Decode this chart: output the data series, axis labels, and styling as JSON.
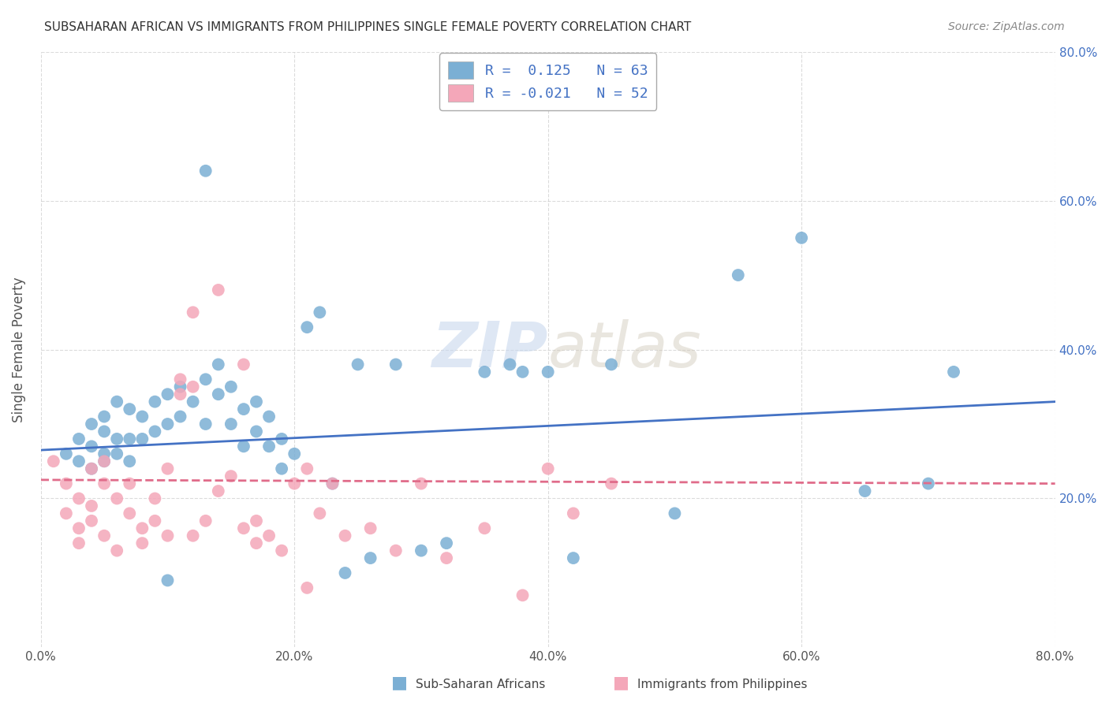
{
  "title": "SUBSAHARAN AFRICAN VS IMMIGRANTS FROM PHILIPPINES SINGLE FEMALE POVERTY CORRELATION CHART",
  "source": "Source: ZipAtlas.com",
  "ylabel": "Single Female Poverty",
  "xlim": [
    0.0,
    0.8
  ],
  "ylim": [
    0.0,
    0.8
  ],
  "xtick_labels": [
    "0.0%",
    "20.0%",
    "40.0%",
    "60.0%",
    "80.0%"
  ],
  "xtick_vals": [
    0.0,
    0.2,
    0.4,
    0.6,
    0.8
  ],
  "ytick_vals": [
    0.2,
    0.4,
    0.6,
    0.8
  ],
  "right_ytick_labels": [
    "20.0%",
    "40.0%",
    "60.0%",
    "80.0%"
  ],
  "right_ytick_vals": [
    0.2,
    0.4,
    0.6,
    0.8
  ],
  "color_blue": "#7bafd4",
  "color_pink": "#f4a7b9",
  "color_blue_line": "#4472c4",
  "color_pink_line": "#e06c8a",
  "watermark_zip": "ZIP",
  "watermark_atlas": "atlas",
  "legend_label1": "Sub-Saharan Africans",
  "legend_label2": "Immigrants from Philippines",
  "blue_scatter_x": [
    0.02,
    0.03,
    0.03,
    0.04,
    0.04,
    0.04,
    0.05,
    0.05,
    0.05,
    0.05,
    0.06,
    0.06,
    0.06,
    0.07,
    0.07,
    0.07,
    0.08,
    0.08,
    0.09,
    0.09,
    0.1,
    0.1,
    0.11,
    0.11,
    0.12,
    0.13,
    0.13,
    0.14,
    0.14,
    0.15,
    0.15,
    0.16,
    0.16,
    0.17,
    0.17,
    0.18,
    0.18,
    0.19,
    0.19,
    0.2,
    0.21,
    0.22,
    0.23,
    0.24,
    0.25,
    0.26,
    0.28,
    0.3,
    0.32,
    0.35,
    0.37,
    0.4,
    0.42,
    0.45,
    0.5,
    0.55,
    0.6,
    0.65,
    0.7,
    0.72,
    0.13,
    0.38,
    0.1
  ],
  "blue_scatter_y": [
    0.26,
    0.25,
    0.28,
    0.24,
    0.27,
    0.3,
    0.25,
    0.26,
    0.29,
    0.31,
    0.26,
    0.28,
    0.33,
    0.25,
    0.28,
    0.32,
    0.28,
    0.31,
    0.29,
    0.33,
    0.3,
    0.34,
    0.31,
    0.35,
    0.33,
    0.3,
    0.36,
    0.34,
    0.38,
    0.3,
    0.35,
    0.32,
    0.27,
    0.29,
    0.33,
    0.27,
    0.31,
    0.24,
    0.28,
    0.26,
    0.43,
    0.45,
    0.22,
    0.1,
    0.38,
    0.12,
    0.38,
    0.13,
    0.14,
    0.37,
    0.38,
    0.37,
    0.12,
    0.38,
    0.18,
    0.5,
    0.55,
    0.21,
    0.22,
    0.37,
    0.64,
    0.37,
    0.09
  ],
  "pink_scatter_x": [
    0.01,
    0.02,
    0.02,
    0.03,
    0.03,
    0.03,
    0.04,
    0.04,
    0.04,
    0.05,
    0.05,
    0.05,
    0.06,
    0.06,
    0.07,
    0.07,
    0.08,
    0.08,
    0.09,
    0.09,
    0.1,
    0.1,
    0.11,
    0.11,
    0.12,
    0.12,
    0.13,
    0.14,
    0.15,
    0.16,
    0.17,
    0.18,
    0.19,
    0.2,
    0.21,
    0.22,
    0.24,
    0.26,
    0.28,
    0.3,
    0.32,
    0.35,
    0.38,
    0.4,
    0.42,
    0.45,
    0.12,
    0.14,
    0.16,
    0.17,
    0.21,
    0.23
  ],
  "pink_scatter_y": [
    0.25,
    0.22,
    0.18,
    0.2,
    0.16,
    0.14,
    0.24,
    0.19,
    0.17,
    0.22,
    0.25,
    0.15,
    0.2,
    0.13,
    0.22,
    0.18,
    0.16,
    0.14,
    0.2,
    0.17,
    0.24,
    0.15,
    0.34,
    0.36,
    0.35,
    0.15,
    0.17,
    0.21,
    0.23,
    0.16,
    0.17,
    0.15,
    0.13,
    0.22,
    0.24,
    0.18,
    0.15,
    0.16,
    0.13,
    0.22,
    0.12,
    0.16,
    0.07,
    0.24,
    0.18,
    0.22,
    0.45,
    0.48,
    0.38,
    0.14,
    0.08,
    0.22
  ],
  "blue_line_x": [
    0.0,
    0.8
  ],
  "blue_line_y": [
    0.265,
    0.33
  ],
  "pink_line_x": [
    0.0,
    0.8
  ],
  "pink_line_y": [
    0.225,
    0.22
  ],
  "figsize": [
    14.06,
    8.92
  ],
  "dpi": 100
}
